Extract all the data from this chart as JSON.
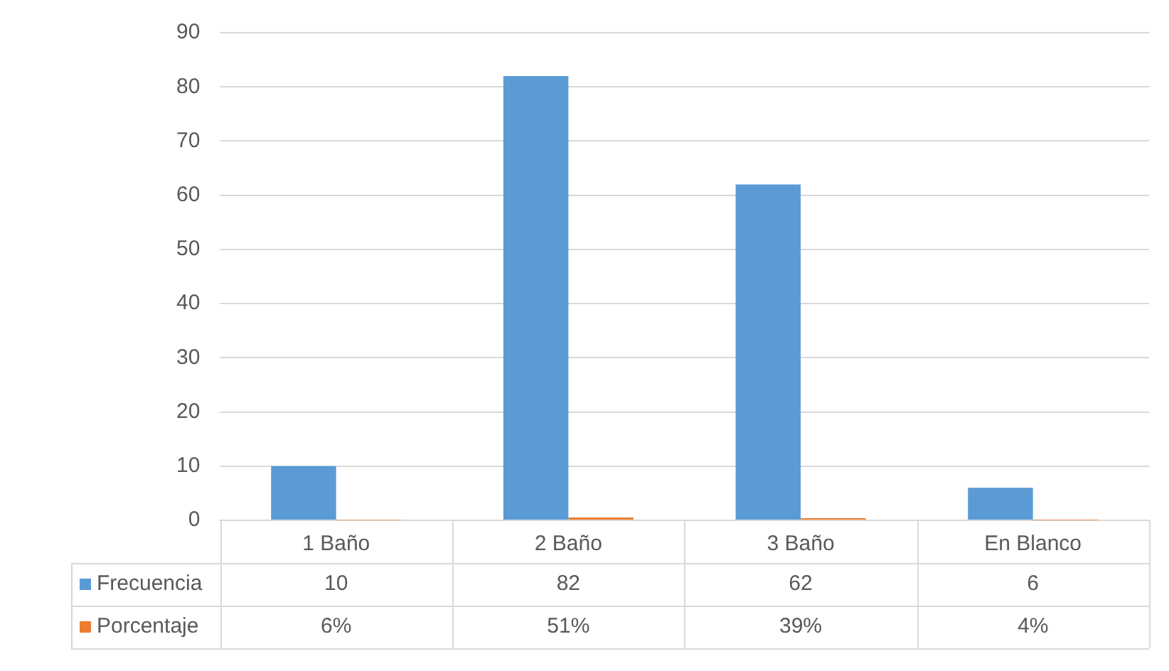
{
  "chart_data": {
    "type": "bar",
    "categories": [
      "1 Baño",
      "2 Baño",
      "3 Baño",
      "En Blanco"
    ],
    "series": [
      {
        "name": "Frecuencia",
        "color": "#5b9bd5",
        "values": [
          10,
          82,
          62,
          6
        ],
        "value_labels": [
          "10",
          "82",
          "62",
          "6"
        ]
      },
      {
        "name": "Porcentaje",
        "color": "#ed7d31",
        "values": [
          0.06,
          0.51,
          0.39,
          0.04
        ],
        "value_labels": [
          "6%",
          "51%",
          "39%",
          "4%"
        ]
      }
    ],
    "ylim": [
      0,
      90
    ],
    "yticks": [
      0,
      10,
      20,
      30,
      40,
      50,
      60,
      70,
      80,
      90
    ],
    "grid": "y",
    "legend": "bottom"
  }
}
